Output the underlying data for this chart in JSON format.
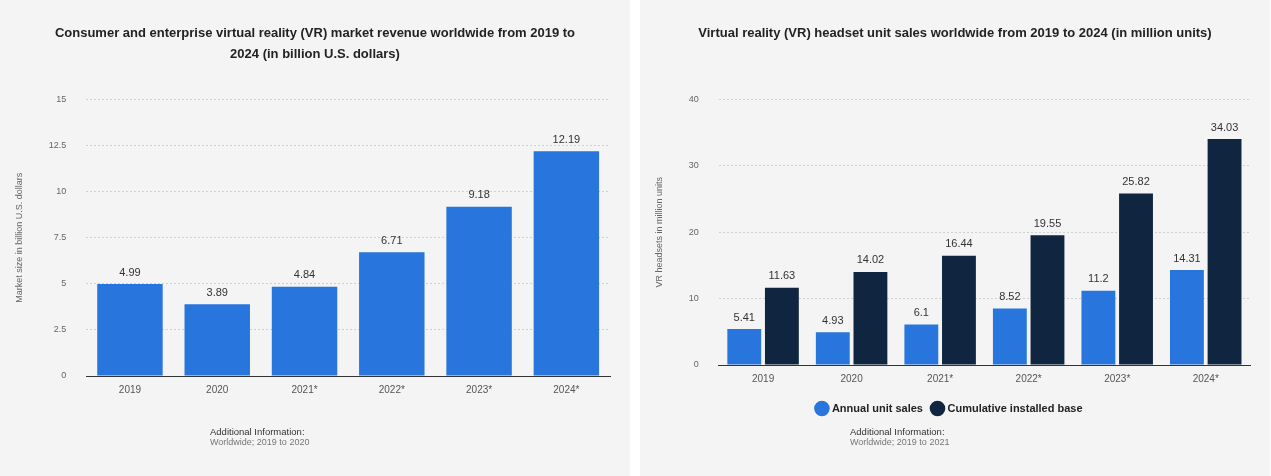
{
  "chart_data": [
    {
      "type": "bar",
      "title": "Consumer and enterprise virtual reality (VR) market revenue worldwide from 2019 to 2024 (in billion U.S. dollars)",
      "ylabel": "Market size in billion U.S. dollars",
      "categories": [
        "2019",
        "2020",
        "2021*",
        "2022*",
        "2023*",
        "2024*"
      ],
      "series": [
        {
          "color": "#2876dd",
          "values": [
            4.99,
            3.89,
            4.84,
            6.71,
            9.18,
            12.19
          ]
        }
      ],
      "ylim": [
        0,
        15
      ],
      "yticks": [
        0,
        2.5,
        5,
        7.5,
        10,
        12.5,
        15
      ],
      "grid": "y",
      "data_labels": true,
      "legend": false,
      "annotations": [
        "Additional Information:",
        "Worldwide; 2019 to 2020"
      ]
    },
    {
      "type": "bar",
      "title": "Virtual reality (VR) headset unit sales worldwide from 2019 to 2024 (in million units)",
      "ylabel": "VR headsets in million units",
      "categories": [
        "2019",
        "2020",
        "2021*",
        "2022*",
        "2023*",
        "2024*"
      ],
      "series": [
        {
          "name": "Annual unit sales",
          "color": "#2876dd",
          "values": [
            5.41,
            4.93,
            6.1,
            8.52,
            11.2,
            14.31
          ]
        },
        {
          "name": "Cumulative installed base",
          "color": "#10253f",
          "values": [
            11.63,
            14.02,
            16.44,
            19.55,
            25.82,
            34.03
          ]
        }
      ],
      "ylim": [
        0,
        40
      ],
      "yticks": [
        0,
        10,
        20,
        30,
        40
      ],
      "grid": "y",
      "data_labels": true,
      "legend": "bottom",
      "annotations": [
        "Additional Information:",
        "Worldwide; 2019 to 2021"
      ]
    }
  ]
}
